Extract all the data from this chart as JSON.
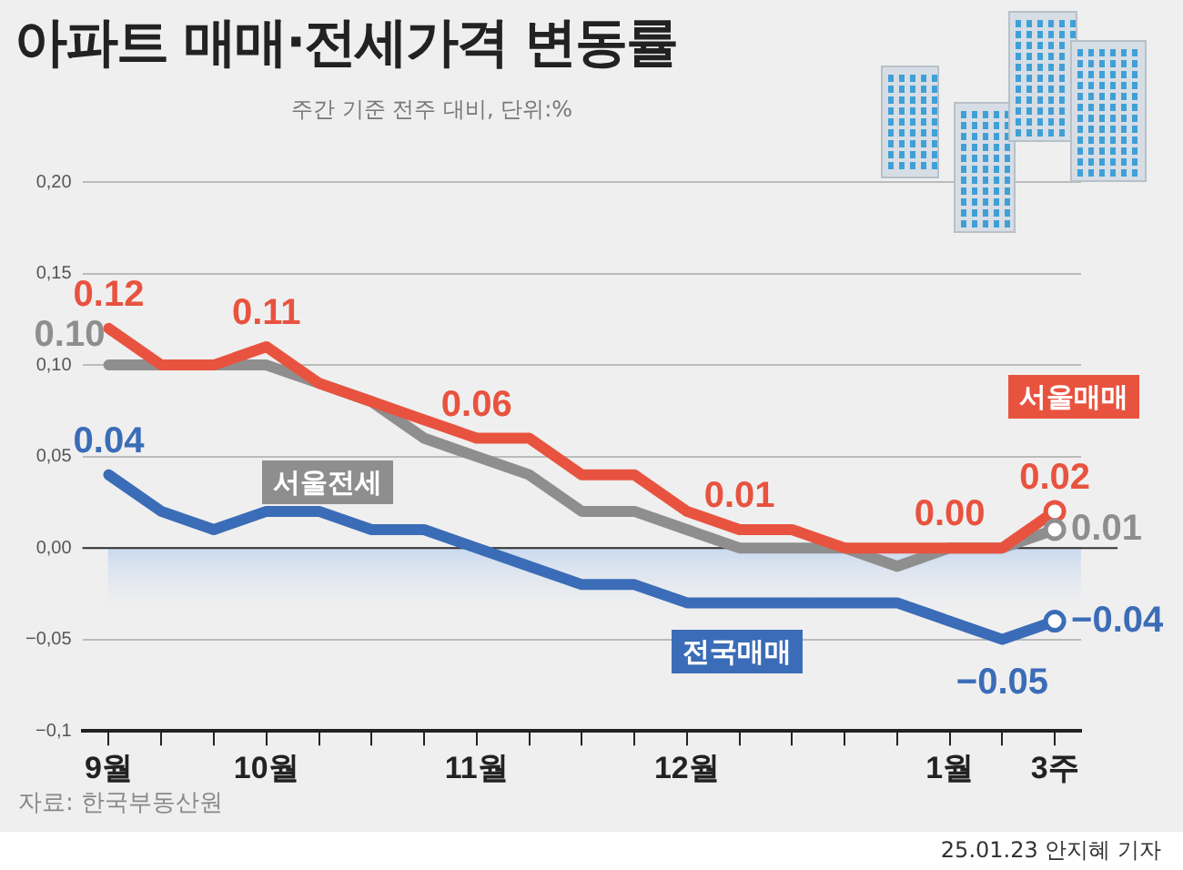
{
  "chart_data": {
    "type": "line",
    "title": "아파트 매매·전세가격 변동률",
    "subtitle": "주간 기준 전주 대비, 단위:%",
    "categories": [
      "9월",
      null,
      null,
      "10월",
      null,
      null,
      null,
      "11월",
      null,
      null,
      null,
      "12월",
      null,
      null,
      null,
      null,
      "1월",
      null,
      "3주"
    ],
    "series": [
      {
        "name": "서울매매",
        "color": "#e8533f",
        "values": [
          0.12,
          0.1,
          0.1,
          0.11,
          0.09,
          0.08,
          0.07,
          0.06,
          0.06,
          0.04,
          0.04,
          0.02,
          0.01,
          0.01,
          0.0,
          0.0,
          0.0,
          0.0,
          0.02
        ],
        "value_labels": [
          "0.12",
          null,
          null,
          "0.11",
          null,
          null,
          null,
          "0.06",
          null,
          null,
          null,
          null,
          "0.01",
          null,
          null,
          null,
          "0.00",
          null,
          "0.02"
        ]
      },
      {
        "name": "서울전세",
        "color": "#8e8e8e",
        "values": [
          0.1,
          0.1,
          0.1,
          0.1,
          0.09,
          0.08,
          0.06,
          0.05,
          0.04,
          0.02,
          0.02,
          0.01,
          0.0,
          0.0,
          0.0,
          -0.01,
          0.0,
          0.0,
          0.01
        ],
        "value_labels": [
          "0.10",
          null,
          null,
          null,
          null,
          null,
          null,
          null,
          null,
          null,
          null,
          null,
          null,
          null,
          null,
          null,
          null,
          null,
          "0.01"
        ]
      },
      {
        "name": "전국매매",
        "color": "#3b6cb7",
        "values": [
          0.04,
          0.02,
          0.01,
          0.02,
          0.02,
          0.01,
          0.01,
          0.0,
          -0.01,
          -0.02,
          -0.02,
          -0.03,
          -0.03,
          -0.03,
          -0.03,
          -0.03,
          -0.04,
          -0.05,
          -0.04
        ],
        "value_labels": [
          "0.04",
          null,
          null,
          null,
          null,
          null,
          null,
          null,
          null,
          null,
          null,
          null,
          null,
          null,
          null,
          null,
          null,
          "−0.05",
          "−0.04"
        ]
      }
    ],
    "ylim": [
      -0.1,
      0.2
    ],
    "yticks": [
      {
        "value": -0.1,
        "label": "−0,1"
      },
      {
        "value": -0.05,
        "label": "−0,05"
      },
      {
        "value": 0,
        "label": "0,00"
      },
      {
        "value": 0.05,
        "label": "0,05"
      },
      {
        "value": 0.1,
        "label": "0,10"
      },
      {
        "value": 0.15,
        "label": "0,15"
      },
      {
        "value": 0.2,
        "label": "0,20"
      }
    ],
    "grid": "y",
    "legend": false,
    "marker": "none",
    "line_style": "solid",
    "ref_lines": [
      {
        "axis": "y",
        "value": 0,
        "color": "#333333"
      }
    ],
    "bands": [
      {
        "axis": "y",
        "from": 0,
        "to": -0.04,
        "color": "#c9d9f0"
      }
    ],
    "annotations": [
      "자료: 한국부동산원",
      "25.01.23 안지혜 기자"
    ]
  }
}
